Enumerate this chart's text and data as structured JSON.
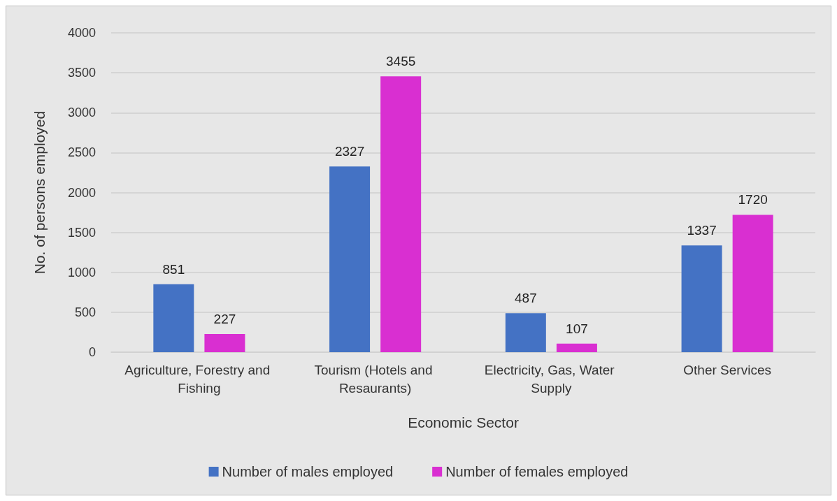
{
  "chart_data": {
    "type": "bar",
    "xlabel": "Economic Sector",
    "ylabel": "No. of persons employed",
    "categories": [
      "Agriculture, Forestry and Fishing",
      "Tourism (Hotels and Resaurants)",
      "Electricity, Gas, Water Supply",
      "Other Services"
    ],
    "series": [
      {
        "name": "Number of males employed",
        "color": "#4472c4",
        "values": [
          851,
          2327,
          487,
          1337
        ]
      },
      {
        "name": "Number of females employed",
        "color": "#d92fd1",
        "values": [
          227,
          3455,
          107,
          1720
        ]
      }
    ],
    "ylim": [
      0,
      4000
    ],
    "yticks": [
      0,
      500,
      1000,
      1500,
      2000,
      2500,
      3000,
      3500,
      4000
    ],
    "grid": "y",
    "legend": "bottom",
    "data_labels": true
  }
}
